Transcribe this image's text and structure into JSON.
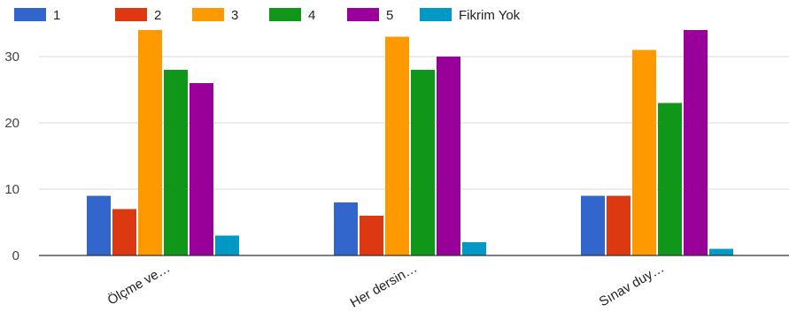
{
  "chart_data": {
    "type": "bar",
    "categories": [
      "Ölçme ve…",
      "Her dersin…",
      "Sınav duy…"
    ],
    "series": [
      {
        "name": "1",
        "color": "#3366cc",
        "values": [
          9,
          8,
          9
        ]
      },
      {
        "name": "2",
        "color": "#dc3912",
        "values": [
          7,
          6,
          9
        ]
      },
      {
        "name": "3",
        "color": "#ff9900",
        "values": [
          34,
          33,
          31
        ]
      },
      {
        "name": "4",
        "color": "#109618",
        "values": [
          28,
          28,
          23
        ]
      },
      {
        "name": "5",
        "color": "#990099",
        "values": [
          26,
          30,
          34
        ]
      },
      {
        "name": "Fikrim Yok",
        "color": "#0099c6",
        "values": [
          3,
          2,
          1
        ]
      }
    ],
    "yticks": [
      0,
      10,
      20,
      30
    ],
    "ylim": [
      0,
      35
    ],
    "grid": true,
    "legend_position": "top-left"
  }
}
